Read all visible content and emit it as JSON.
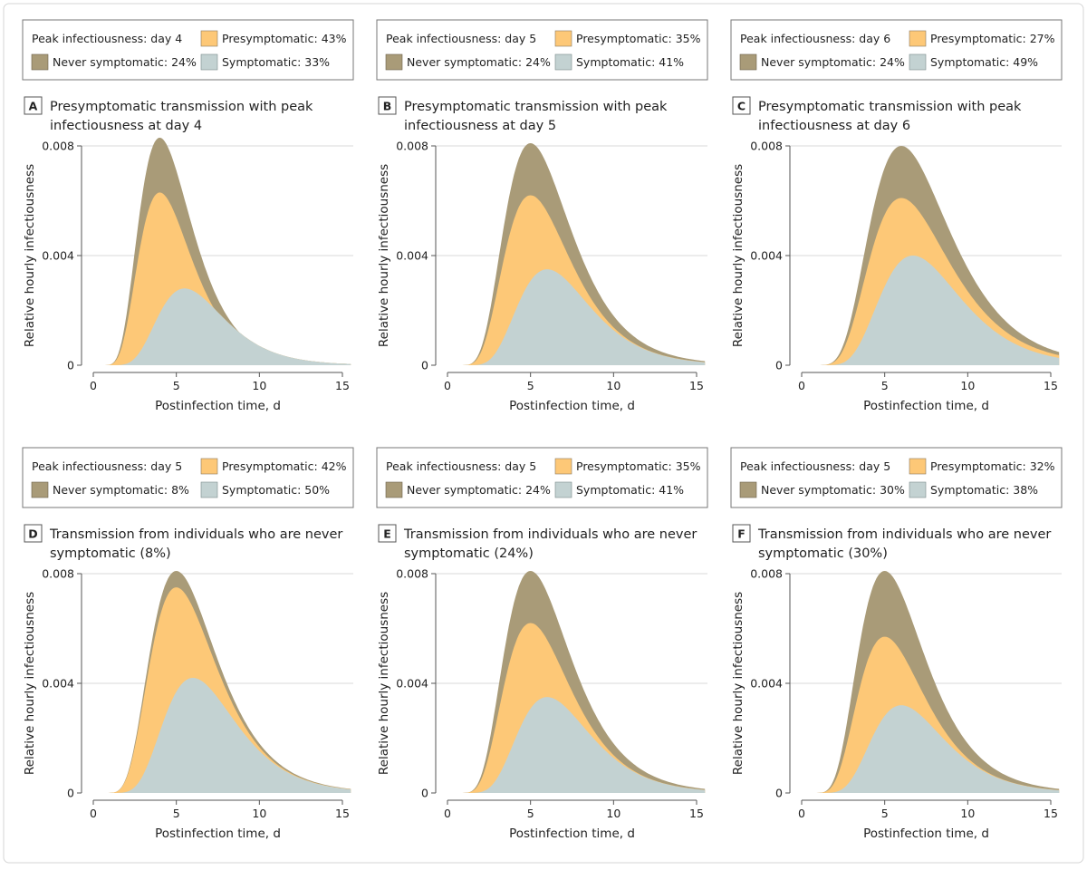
{
  "colors": {
    "never_symptomatic": "#a99b78",
    "presymptomatic": "#fdc877",
    "symptomatic": "#c3d2d2",
    "grid": "#d9d9d9",
    "axis": "#555555"
  },
  "chart_data": [
    {
      "type": "area",
      "letter": "A",
      "title_lines": [
        "Presymptomatic transmission with peak",
        "infectiousness at day 4"
      ],
      "legend": {
        "peak": "Peak infectiousness: day 4",
        "presymptomatic": "Presymptomatic: 43%",
        "never": "Never symptomatic: 24%",
        "symptomatic": "Symptomatic: 33%"
      },
      "xlabel": "Postinfection time, d",
      "ylabel": "Relative hourly infectiousness",
      "xlim": [
        0,
        15
      ],
      "ylim": [
        0,
        0.008
      ],
      "xticks": [
        "0",
        "5",
        "10",
        "15"
      ],
      "yticks": [
        "0",
        "0.004",
        "0.008"
      ],
      "stacked": true,
      "series": [
        {
          "key": "never",
          "peak_day": 4,
          "peak_value": 0.0083
        },
        {
          "key": "presymptomatic",
          "peak_day": 4,
          "peak_value": 0.0063
        },
        {
          "key": "symptomatic",
          "peak_day": 5.5,
          "peak_value": 0.0028
        }
      ]
    },
    {
      "type": "area",
      "letter": "B",
      "title_lines": [
        "Presymptomatic transmission with peak",
        "infectiousness at day 5"
      ],
      "legend": {
        "peak": "Peak infectiousness: day 5",
        "presymptomatic": "Presymptomatic: 35%",
        "never": "Never symptomatic: 24%",
        "symptomatic": "Symptomatic: 41%"
      },
      "xlabel": "Postinfection time, d",
      "ylabel": "Relative hourly infectiousness",
      "xlim": [
        0,
        15
      ],
      "ylim": [
        0,
        0.008
      ],
      "xticks": [
        "0",
        "5",
        "10",
        "15"
      ],
      "yticks": [
        "0",
        "0.004",
        "0.008"
      ],
      "stacked": true,
      "series": [
        {
          "key": "never",
          "peak_day": 5,
          "peak_value": 0.0081
        },
        {
          "key": "presymptomatic",
          "peak_day": 5,
          "peak_value": 0.0062
        },
        {
          "key": "symptomatic",
          "peak_day": 6,
          "peak_value": 0.0035
        }
      ]
    },
    {
      "type": "area",
      "letter": "C",
      "title_lines": [
        "Presymptomatic transmission with peak",
        "infectiousness at day 6"
      ],
      "legend": {
        "peak": "Peak infectiousness: day 6",
        "presymptomatic": "Presymptomatic: 27%",
        "never": "Never symptomatic: 24%",
        "symptomatic": "Symptomatic: 49%"
      },
      "xlabel": "Postinfection time, d",
      "ylabel": "Relative hourly infectiousness",
      "xlim": [
        0,
        15
      ],
      "ylim": [
        0,
        0.008
      ],
      "xticks": [
        "0",
        "5",
        "10",
        "15"
      ],
      "yticks": [
        "0",
        "0.004",
        "0.008"
      ],
      "stacked": true,
      "series": [
        {
          "key": "never",
          "peak_day": 6,
          "peak_value": 0.008
        },
        {
          "key": "presymptomatic",
          "peak_day": 6,
          "peak_value": 0.0061
        },
        {
          "key": "symptomatic",
          "peak_day": 6.7,
          "peak_value": 0.004
        }
      ]
    },
    {
      "type": "area",
      "letter": "D",
      "title_lines": [
        "Transmission from individuals who are never",
        "symptomatic (8%)"
      ],
      "legend": {
        "peak": "Peak infectiousness: day 5",
        "presymptomatic": "Presymptomatic: 42%",
        "never": "Never symptomatic: 8%",
        "symptomatic": "Symptomatic: 50%"
      },
      "xlabel": "Postinfection time, d",
      "ylabel": "Relative hourly infectiousness",
      "xlim": [
        0,
        15
      ],
      "ylim": [
        0,
        0.008
      ],
      "xticks": [
        "0",
        "5",
        "10",
        "15"
      ],
      "yticks": [
        "0",
        "0.004",
        "0.008"
      ],
      "stacked": true,
      "series": [
        {
          "key": "never",
          "peak_day": 5,
          "peak_value": 0.0081
        },
        {
          "key": "presymptomatic",
          "peak_day": 5,
          "peak_value": 0.0075
        },
        {
          "key": "symptomatic",
          "peak_day": 6,
          "peak_value": 0.0042
        }
      ]
    },
    {
      "type": "area",
      "letter": "E",
      "title_lines": [
        "Transmission from individuals who are never",
        "symptomatic (24%)"
      ],
      "legend": {
        "peak": "Peak infectiousness: day 5",
        "presymptomatic": "Presymptomatic: 35%",
        "never": "Never symptomatic: 24%",
        "symptomatic": "Symptomatic: 41%"
      },
      "xlabel": "Postinfection time, d",
      "ylabel": "Relative hourly infectiousness",
      "xlim": [
        0,
        15
      ],
      "ylim": [
        0,
        0.008
      ],
      "xticks": [
        "0",
        "5",
        "10",
        "15"
      ],
      "yticks": [
        "0",
        "0.004",
        "0.008"
      ],
      "stacked": true,
      "series": [
        {
          "key": "never",
          "peak_day": 5,
          "peak_value": 0.0081
        },
        {
          "key": "presymptomatic",
          "peak_day": 5,
          "peak_value": 0.0062
        },
        {
          "key": "symptomatic",
          "peak_day": 6,
          "peak_value": 0.0035
        }
      ]
    },
    {
      "type": "area",
      "letter": "F",
      "title_lines": [
        "Transmission from individuals who are never",
        "symptomatic (30%)"
      ],
      "legend": {
        "peak": "Peak infectiousness: day 5",
        "presymptomatic": "Presymptomatic: 32%",
        "never": "Never symptomatic: 30%",
        "symptomatic": "Symptomatic: 38%"
      },
      "xlabel": "Postinfection time, d",
      "ylabel": "Relative hourly infectiousness",
      "xlim": [
        0,
        15
      ],
      "ylim": [
        0,
        0.008
      ],
      "xticks": [
        "0",
        "5",
        "10",
        "15"
      ],
      "yticks": [
        "0",
        "0.004",
        "0.008"
      ],
      "stacked": true,
      "series": [
        {
          "key": "never",
          "peak_day": 5,
          "peak_value": 0.0081
        },
        {
          "key": "presymptomatic",
          "peak_day": 5,
          "peak_value": 0.0057
        },
        {
          "key": "symptomatic",
          "peak_day": 6,
          "peak_value": 0.0032
        }
      ]
    }
  ]
}
